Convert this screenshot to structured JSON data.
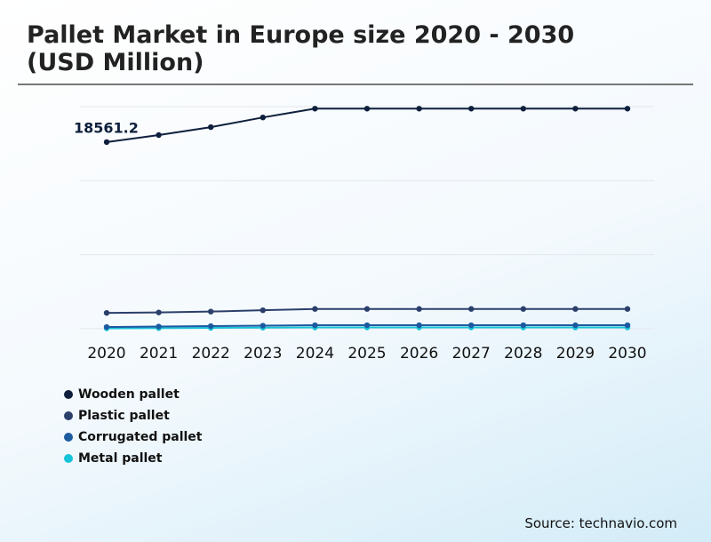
{
  "chart_data": {
    "type": "line",
    "title": "Pallet Market in Europe size 2020 - 2030 (USD Million)",
    "source": "Source: technavio.com",
    "categories": [
      "2020",
      "2021",
      "2022",
      "2023",
      "2024",
      "2025",
      "2026",
      "2027",
      "2028",
      "2029",
      "2030"
    ],
    "series": [
      {
        "name": "Wooden pallet",
        "color": "#0d1f3c",
        "values": [
          18561.2,
          19261,
          20049,
          21012,
          21888,
          21888,
          21888,
          21888,
          21888,
          21888,
          21888
        ]
      },
      {
        "name": "Plastic pallet",
        "color": "#2b3f6b",
        "values": [
          1576,
          1620,
          1707,
          1839,
          1970,
          1970,
          1970,
          1970,
          1970,
          1970,
          1970
        ]
      },
      {
        "name": "Corrugated pallet",
        "color": "#1c5aa0",
        "values": [
          175,
          219,
          263,
          306,
          350,
          350,
          350,
          350,
          350,
          350,
          350
        ]
      },
      {
        "name": "Metal pallet",
        "color": "#17c3d8",
        "values": [
          44,
          66,
          88,
          110,
          131,
          131,
          131,
          131,
          131,
          131,
          131
        ]
      }
    ],
    "ylim": [
      0,
      22000
    ],
    "grid": true
  }
}
